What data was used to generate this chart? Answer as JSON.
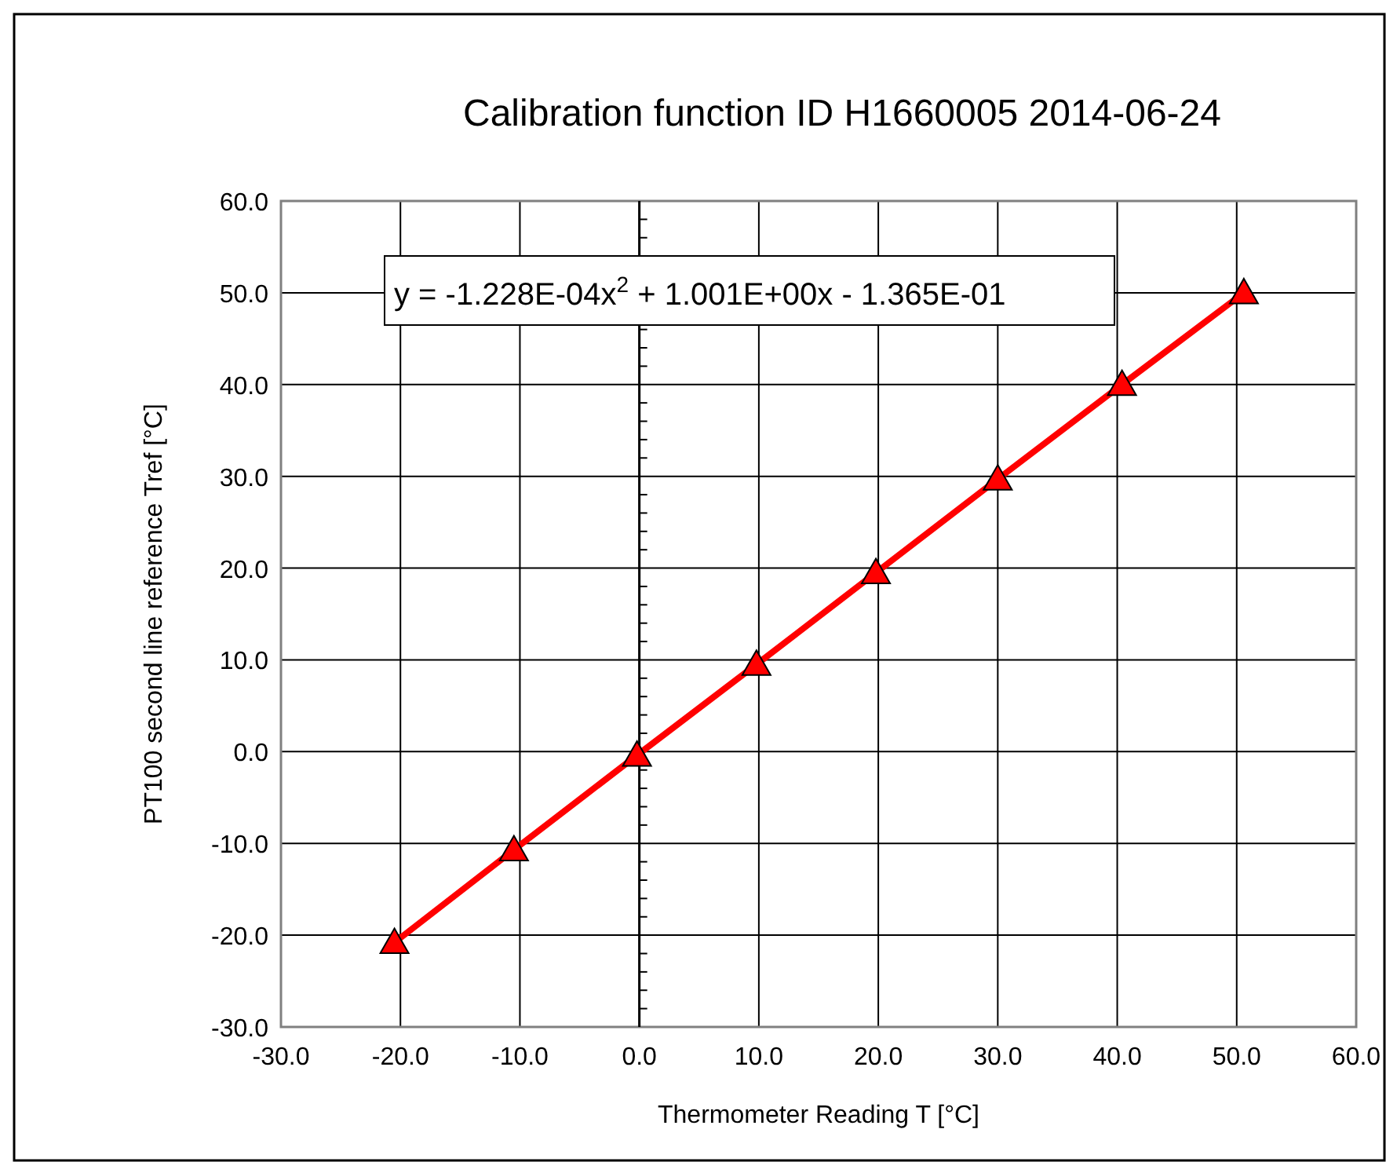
{
  "chart_data": {
    "type": "line",
    "title": "Calibration function ID H1660005 2014-06-24",
    "xlabel": "Thermometer Reading T [°C]",
    "ylabel": "PT100 second line reference Tref [°C]",
    "x": [
      -20.5,
      -10.5,
      -0.2,
      9.8,
      19.8,
      30.0,
      40.4,
      50.6
    ],
    "series": [
      {
        "color": "#ff0000",
        "values": [
          -20.8,
          -10.7,
          -0.4,
          9.5,
          19.5,
          29.7,
          40.0,
          50.0
        ]
      }
    ],
    "xlim": [
      -30,
      60
    ],
    "ylim": [
      -30,
      60
    ],
    "xticks": [
      {
        "value": -30,
        "label": "-30.0"
      },
      {
        "value": -20,
        "label": "-20.0"
      },
      {
        "value": -10,
        "label": "-10.0"
      },
      {
        "value": 0,
        "label": "0.0"
      },
      {
        "value": 10,
        "label": "10.0"
      },
      {
        "value": 20,
        "label": "20.0"
      },
      {
        "value": 30,
        "label": "30.0"
      },
      {
        "value": 40,
        "label": "40.0"
      },
      {
        "value": 50,
        "label": "50.0"
      },
      {
        "value": 60,
        "label": "60.0"
      }
    ],
    "yticks": [
      {
        "value": -30,
        "label": "-30.0"
      },
      {
        "value": -20,
        "label": "-20.0"
      },
      {
        "value": -10,
        "label": "-10.0"
      },
      {
        "value": 0,
        "label": "0.0"
      },
      {
        "value": 10,
        "label": "10.0"
      },
      {
        "value": 20,
        "label": "20.0"
      },
      {
        "value": 30,
        "label": "30.0"
      },
      {
        "value": 40,
        "label": "40.0"
      },
      {
        "value": 50,
        "label": "50.0"
      },
      {
        "value": 60,
        "label": "60.0"
      }
    ],
    "grid": true,
    "marker": "triangle",
    "line_style": "solid",
    "annotations": [
      "y = -1.228E-04x$^{2}$ + 1.001E+00x - 1.365E-01"
    ]
  }
}
